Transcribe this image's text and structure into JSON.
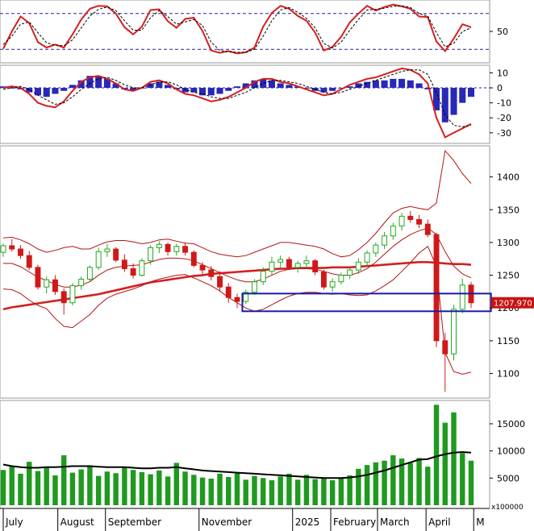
{
  "colors": {
    "up_candle": "#1faa1f",
    "down_candle": "#d01818",
    "band_line": "#b51313",
    "ma_line": "#d42020",
    "volume_bar": "#1f9a1f",
    "volume_ma": "#000000",
    "macd_hist": "#2828b8",
    "support_box": "#1a1aa8",
    "price_tag_bg": "#c81414",
    "price_tag_text": "#ffffff",
    "dash_line": "#2424a0"
  },
  "chart_data": [
    {
      "panel": "stochastic",
      "type": "line",
      "y_ticks": [
        "50"
      ],
      "ylim": [
        0,
        100
      ],
      "reference_levels": [
        80,
        20
      ],
      "series": [
        {
          "style": "solid",
          "values": [
            21,
            50,
            75,
            64,
            32,
            23,
            28,
            23,
            45,
            70,
            88,
            93,
            92,
            80,
            57,
            45,
            58,
            86,
            87,
            67,
            56,
            71,
            73,
            51,
            18,
            14,
            17,
            13,
            15,
            23,
            58,
            81,
            93,
            88,
            76,
            68,
            48,
            18,
            24,
            41,
            65,
            80,
            93,
            85,
            91,
            95,
            92,
            88,
            75,
            74,
            33,
            17,
            38,
            62,
            57
          ]
        },
        {
          "style": "dashed",
          "values": [
            28,
            42,
            62,
            66,
            48,
            31,
            27,
            26,
            36,
            56,
            76,
            87,
            91,
            85,
            68,
            52,
            52,
            73,
            85,
            75,
            62,
            66,
            70,
            60,
            32,
            18,
            16,
            15,
            15,
            20,
            42,
            68,
            86,
            90,
            82,
            72,
            56,
            30,
            22,
            32,
            52,
            70,
            86,
            87,
            89,
            92,
            93,
            90,
            80,
            76,
            48,
            24,
            30,
            50,
            56
          ]
        }
      ]
    },
    {
      "panel": "macd",
      "type": "bar+line",
      "y_ticks": [
        "10",
        "0",
        "-10",
        "-20",
        "-30"
      ],
      "ylim": [
        -36,
        14
      ],
      "series": [
        {
          "style": "histogram",
          "values": [
            1,
            0,
            -1,
            -3,
            -5,
            -6,
            -4,
            -2,
            2,
            5,
            8,
            8,
            6,
            3,
            -1,
            -2,
            0,
            3,
            4,
            2,
            -1,
            -3,
            -3,
            -5,
            -5,
            -4,
            -2,
            1,
            3,
            5,
            6,
            5,
            3,
            2,
            1,
            0,
            -2,
            -3,
            -2,
            0,
            1,
            3,
            4,
            5,
            5,
            6,
            6,
            5,
            3,
            -1,
            -15,
            -23,
            -18,
            -10,
            -6
          ]
        },
        {
          "style": "solid",
          "values": [
            0,
            1,
            0,
            -4,
            -10,
            -12,
            -13,
            -9,
            -2,
            4,
            7,
            8,
            6,
            3,
            -1,
            -2,
            0,
            4,
            5,
            3,
            -1,
            -4,
            -5,
            -7,
            -9,
            -8,
            -6,
            -3,
            0,
            4,
            6,
            6,
            4,
            3,
            1,
            -1,
            -3,
            -5,
            -4,
            -1,
            2,
            4,
            6,
            7,
            9,
            11,
            13,
            12,
            9,
            3,
            -20,
            -33,
            -30,
            -27,
            -24
          ]
        },
        {
          "style": "dashed",
          "values": [
            -1,
            0,
            1,
            -1,
            -5,
            -8,
            -11,
            -10,
            -6,
            -1,
            3,
            6,
            7,
            5,
            2,
            0,
            0,
            2,
            4,
            4,
            2,
            -1,
            -3,
            -4,
            -6,
            -7,
            -7,
            -5,
            -3,
            0,
            3,
            5,
            5,
            4,
            3,
            1,
            -1,
            -3,
            -4,
            -3,
            -1,
            1,
            3,
            5,
            7,
            9,
            11,
            12,
            12,
            9,
            -3,
            -18,
            -25,
            -26,
            -25
          ]
        }
      ]
    },
    {
      "panel": "price",
      "type": "candlestick",
      "y_ticks": [
        "1400",
        "1350",
        "1300",
        "1250",
        "1200",
        "1150",
        "1100"
      ],
      "ylim": [
        1065,
        1445
      ],
      "last_price_label": "1207.970",
      "support_zone": {
        "from_index": 28,
        "to_index": 56,
        "low": 1195,
        "high": 1222
      },
      "candles": [
        {
          "o": 1285,
          "h": 1298,
          "l": 1278,
          "c": 1295
        },
        {
          "o": 1295,
          "h": 1305,
          "l": 1286,
          "c": 1290
        },
        {
          "o": 1290,
          "h": 1296,
          "l": 1275,
          "c": 1280
        },
        {
          "o": 1280,
          "h": 1287,
          "l": 1258,
          "c": 1262
        },
        {
          "o": 1262,
          "h": 1266,
          "l": 1228,
          "c": 1232
        },
        {
          "o": 1232,
          "h": 1248,
          "l": 1222,
          "c": 1243
        },
        {
          "o": 1243,
          "h": 1250,
          "l": 1220,
          "c": 1225
        },
        {
          "o": 1225,
          "h": 1230,
          "l": 1190,
          "c": 1208
        },
        {
          "o": 1208,
          "h": 1238,
          "l": 1204,
          "c": 1234
        },
        {
          "o": 1234,
          "h": 1248,
          "l": 1228,
          "c": 1244
        },
        {
          "o": 1244,
          "h": 1265,
          "l": 1240,
          "c": 1262
        },
        {
          "o": 1262,
          "h": 1292,
          "l": 1258,
          "c": 1286
        },
        {
          "o": 1286,
          "h": 1298,
          "l": 1278,
          "c": 1290
        },
        {
          "o": 1290,
          "h": 1293,
          "l": 1270,
          "c": 1273
        },
        {
          "o": 1273,
          "h": 1282,
          "l": 1255,
          "c": 1260
        },
        {
          "o": 1260,
          "h": 1268,
          "l": 1245,
          "c": 1250
        },
        {
          "o": 1250,
          "h": 1276,
          "l": 1248,
          "c": 1272
        },
        {
          "o": 1272,
          "h": 1296,
          "l": 1266,
          "c": 1292
        },
        {
          "o": 1292,
          "h": 1302,
          "l": 1284,
          "c": 1297
        },
        {
          "o": 1297,
          "h": 1300,
          "l": 1280,
          "c": 1286
        },
        {
          "o": 1286,
          "h": 1298,
          "l": 1280,
          "c": 1294
        },
        {
          "o": 1294,
          "h": 1300,
          "l": 1280,
          "c": 1285
        },
        {
          "o": 1285,
          "h": 1288,
          "l": 1262,
          "c": 1265
        },
        {
          "o": 1265,
          "h": 1270,
          "l": 1250,
          "c": 1258
        },
        {
          "o": 1258,
          "h": 1264,
          "l": 1242,
          "c": 1248
        },
        {
          "o": 1248,
          "h": 1256,
          "l": 1225,
          "c": 1232
        },
        {
          "o": 1232,
          "h": 1238,
          "l": 1208,
          "c": 1216
        },
        {
          "o": 1216,
          "h": 1222,
          "l": 1200,
          "c": 1210
        },
        {
          "o": 1210,
          "h": 1228,
          "l": 1206,
          "c": 1224
        },
        {
          "o": 1224,
          "h": 1244,
          "l": 1220,
          "c": 1240
        },
        {
          "o": 1240,
          "h": 1262,
          "l": 1235,
          "c": 1256
        },
        {
          "o": 1256,
          "h": 1278,
          "l": 1250,
          "c": 1270
        },
        {
          "o": 1270,
          "h": 1280,
          "l": 1262,
          "c": 1274
        },
        {
          "o": 1274,
          "h": 1278,
          "l": 1258,
          "c": 1262
        },
        {
          "o": 1262,
          "h": 1272,
          "l": 1254,
          "c": 1268
        },
        {
          "o": 1268,
          "h": 1280,
          "l": 1262,
          "c": 1272
        },
        {
          "o": 1272,
          "h": 1275,
          "l": 1250,
          "c": 1255
        },
        {
          "o": 1255,
          "h": 1258,
          "l": 1228,
          "c": 1232
        },
        {
          "o": 1232,
          "h": 1245,
          "l": 1225,
          "c": 1240
        },
        {
          "o": 1240,
          "h": 1254,
          "l": 1236,
          "c": 1250
        },
        {
          "o": 1250,
          "h": 1262,
          "l": 1244,
          "c": 1258
        },
        {
          "o": 1258,
          "h": 1276,
          "l": 1252,
          "c": 1270
        },
        {
          "o": 1270,
          "h": 1288,
          "l": 1264,
          "c": 1284
        },
        {
          "o": 1284,
          "h": 1300,
          "l": 1278,
          "c": 1296
        },
        {
          "o": 1296,
          "h": 1316,
          "l": 1290,
          "c": 1310
        },
        {
          "o": 1310,
          "h": 1330,
          "l": 1304,
          "c": 1325
        },
        {
          "o": 1325,
          "h": 1345,
          "l": 1318,
          "c": 1340
        },
        {
          "o": 1340,
          "h": 1348,
          "l": 1330,
          "c": 1335
        },
        {
          "o": 1335,
          "h": 1342,
          "l": 1322,
          "c": 1328
        },
        {
          "o": 1328,
          "h": 1335,
          "l": 1308,
          "c": 1312
        },
        {
          "o": 1312,
          "h": 1315,
          "l": 1140,
          "c": 1150
        },
        {
          "o": 1150,
          "h": 1162,
          "l": 1072,
          "c": 1130
        },
        {
          "o": 1130,
          "h": 1205,
          "l": 1120,
          "c": 1198
        },
        {
          "o": 1198,
          "h": 1245,
          "l": 1192,
          "c": 1235
        },
        {
          "o": 1235,
          "h": 1240,
          "l": 1200,
          "c": 1208
        }
      ],
      "series": [
        {
          "name": "MA",
          "style": "thick",
          "values": [
            1198,
            1201,
            1203,
            1205,
            1207,
            1209,
            1211,
            1213,
            1215,
            1217,
            1219,
            1221,
            1224,
            1227,
            1230,
            1233,
            1236,
            1239,
            1241,
            1243,
            1245,
            1247,
            1249,
            1250,
            1252,
            1253,
            1254,
            1255,
            1256,
            1257,
            1258,
            1259,
            1260,
            1260,
            1261,
            1261,
            1261,
            1261,
            1262,
            1262,
            1262,
            1263,
            1264,
            1265,
            1266,
            1267,
            1268,
            1269,
            1270,
            1270,
            1269,
            1268,
            1267,
            1267,
            1266
          ]
        },
        {
          "name": "BB-upper",
          "style": "thin",
          "values": [
            1307,
            1308,
            1304,
            1298,
            1290,
            1285,
            1288,
            1292,
            1294,
            1290,
            1290,
            1296,
            1301,
            1303,
            1303,
            1301,
            1298,
            1300,
            1304,
            1305,
            1302,
            1299,
            1298,
            1292,
            1286,
            1282,
            1280,
            1278,
            1280,
            1285,
            1290,
            1295,
            1300,
            1300,
            1298,
            1296,
            1294,
            1290,
            1283,
            1278,
            1280,
            1289,
            1300,
            1314,
            1330,
            1345,
            1352,
            1355,
            1352,
            1350,
            1360,
            1440,
            1425,
            1405,
            1390
          ]
        },
        {
          "name": "BB-mid",
          "style": "thin",
          "values": [
            1268,
            1268,
            1263,
            1255,
            1247,
            1242,
            1236,
            1232,
            1232,
            1235,
            1240,
            1250,
            1258,
            1262,
            1264,
            1265,
            1266,
            1270,
            1274,
            1276,
            1276,
            1275,
            1272,
            1266,
            1260,
            1254,
            1248,
            1243,
            1240,
            1240,
            1244,
            1250,
            1256,
            1259,
            1260,
            1260,
            1259,
            1256,
            1252,
            1250,
            1250,
            1254,
            1260,
            1270,
            1282,
            1294,
            1304,
            1312,
            1318,
            1322,
            1312,
            1286,
            1264,
            1252,
            1246
          ]
        },
        {
          "name": "BB-lower",
          "style": "thin",
          "values": [
            1229,
            1228,
            1222,
            1212,
            1204,
            1199,
            1184,
            1172,
            1170,
            1180,
            1190,
            1204,
            1215,
            1221,
            1225,
            1229,
            1234,
            1240,
            1244,
            1247,
            1250,
            1251,
            1246,
            1240,
            1234,
            1226,
            1216,
            1208,
            1200,
            1195,
            1198,
            1205,
            1212,
            1218,
            1222,
            1224,
            1224,
            1222,
            1221,
            1222,
            1220,
            1219,
            1220,
            1226,
            1234,
            1243,
            1256,
            1269,
            1284,
            1294,
            1264,
            1132,
            1103,
            1099,
            1102
          ]
        }
      ]
    },
    {
      "panel": "volume",
      "type": "bar",
      "y_ticks": [
        "15000",
        "10000",
        "5000"
      ],
      "unit_label": "x100000",
      "ylim": [
        0,
        19000
      ],
      "values": [
        6500,
        7200,
        5800,
        8000,
        6300,
        6900,
        5500,
        9200,
        6000,
        6600,
        7300,
        5400,
        6200,
        5900,
        7000,
        6500,
        6100,
        5700,
        6400,
        5300,
        7800,
        6200,
        5600,
        5100,
        4900,
        5800,
        5200,
        6000,
        4700,
        5400,
        5000,
        4600,
        5300,
        5800,
        4700,
        5600,
        4800,
        5100,
        4600,
        4900,
        5500,
        6700,
        7400,
        7900,
        8200,
        9200,
        8600,
        7800,
        8700,
        7100,
        18500,
        15200,
        17100,
        9600,
        8200
      ],
      "ma_values": [
        7500,
        7200,
        7000,
        6900,
        6900,
        7000,
        7000,
        7100,
        7200,
        7200,
        7200,
        7100,
        7000,
        7000,
        7000,
        6900,
        6800,
        6800,
        6900,
        6900,
        7000,
        6800,
        6600,
        6400,
        6300,
        6200,
        6100,
        6000,
        5900,
        5800,
        5700,
        5600,
        5500,
        5400,
        5300,
        5200,
        5100,
        5000,
        5000,
        5000,
        5100,
        5300,
        5600,
        6000,
        6400,
        6900,
        7400,
        7900,
        8400,
        8500,
        9000,
        9400,
        9700,
        9800,
        9700
      ]
    }
  ],
  "x_axis": {
    "labels": [
      {
        "text": "July",
        "index": 0
      },
      {
        "text": "August",
        "index": 6.3
      },
      {
        "text": "September",
        "index": 11.8
      },
      {
        "text": "November",
        "index": 22.6
      },
      {
        "text": "2025",
        "index": 33.4
      },
      {
        "text": "February",
        "index": 37.8
      },
      {
        "text": "March",
        "index": 43.2
      },
      {
        "text": "April",
        "index": 48.8
      },
      {
        "text": "M",
        "index": 54.3
      }
    ]
  }
}
